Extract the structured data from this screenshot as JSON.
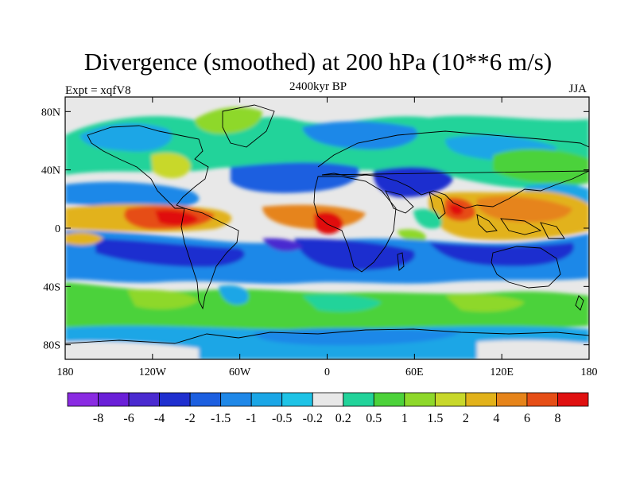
{
  "title": "Divergence (smoothed) at 200 hPa (10**6 m/s)",
  "left_label": "Expt = xqfV8",
  "center_label": "2400kyr BP",
  "right_label": "JJA",
  "lat_ticks": [
    "80N",
    "40N",
    "0",
    "40S",
    "80S"
  ],
  "lon_ticks": [
    "180",
    "120W",
    "60W",
    "0",
    "60E",
    "120E",
    "180"
  ],
  "colorbar": {
    "labels": [
      "-8",
      "-6",
      "-4",
      "-2",
      "-1.5",
      "-1",
      "-0.5",
      "-0.2",
      "0.2",
      "0.5",
      "1",
      "1.5",
      "2",
      "4",
      "6",
      "8"
    ],
    "colors": [
      "#8a2be2",
      "#6a1fd8",
      "#4a2ad0",
      "#1f2fcf",
      "#1c5fe0",
      "#1f88e8",
      "#1aa6e6",
      "#1ec3e6",
      "#e8e8e8",
      "#22d39a",
      "#4cd23a",
      "#8ed82a",
      "#c8d82a",
      "#e2b21a",
      "#e6841a",
      "#e64e16",
      "#e01010"
    ]
  },
  "map_colors": {
    "land_outline": "#000000",
    "neutral": "#e8e8e8"
  }
}
